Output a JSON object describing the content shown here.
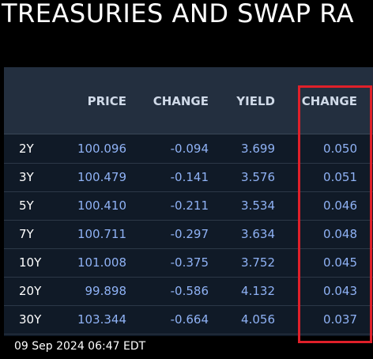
{
  "header": {
    "title": "TREASURIES AND SWAP RA"
  },
  "table": {
    "columns": [
      "",
      "PRICE",
      "CHANGE",
      "YIELD",
      "CHANGE"
    ],
    "rows": [
      [
        "2Y",
        "100.096",
        "-0.094",
        "3.699",
        "0.050"
      ],
      [
        "3Y",
        "100.479",
        "-0.141",
        "3.576",
        "0.051"
      ],
      [
        "5Y",
        "100.410",
        "-0.211",
        "3.534",
        "0.046"
      ],
      [
        "7Y",
        "100.711",
        "-0.297",
        "3.634",
        "0.048"
      ],
      [
        "10Y",
        "101.008",
        "-0.375",
        "3.752",
        "0.045"
      ],
      [
        "20Y",
        "99.898",
        "-0.586",
        "4.132",
        "0.043"
      ],
      [
        "30Y",
        "103.344",
        "-0.664",
        "4.056",
        "0.037"
      ]
    ]
  },
  "footer": {
    "timestamp": "09 Sep 2024 06:47 EDT"
  }
}
